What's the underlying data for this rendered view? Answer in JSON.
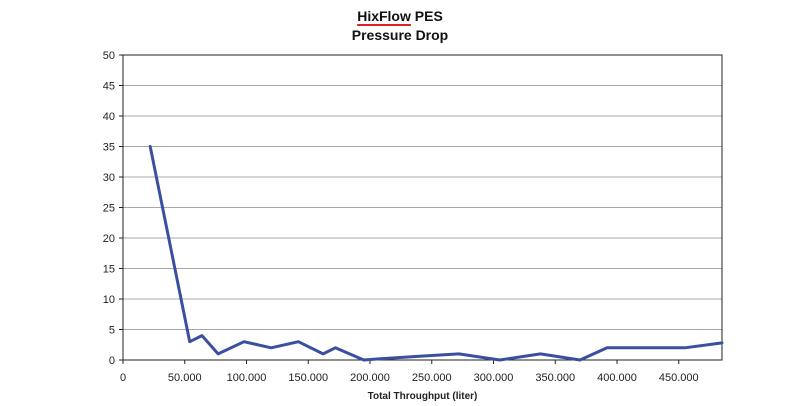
{
  "chart_data": {
    "type": "line",
    "title_brand": "HixFlow",
    "title_suffix": "PES",
    "subtitle": "Pressure  Drop",
    "xlabel": "Total  Throughput  (liter)",
    "ylabel": "",
    "xlim": [
      0,
      485000
    ],
    "ylim": [
      0,
      50
    ],
    "x_ticks": [
      0,
      50000,
      100000,
      150000,
      200000,
      250000,
      300000,
      350000,
      400000,
      450000
    ],
    "x_tick_labels": [
      "0",
      "50.000",
      "100.000",
      "150.000",
      "200.000",
      "250.000",
      "300.000",
      "350.000",
      "400.000",
      "450.000"
    ],
    "y_ticks": [
      0,
      5,
      10,
      15,
      20,
      25,
      30,
      35,
      40,
      45,
      50
    ],
    "y_tick_labels": [
      "0",
      "5",
      "10",
      "15",
      "20",
      "25",
      "30",
      "35",
      "40",
      "45",
      "50"
    ],
    "grid": true,
    "line_color": "#3a4fa0",
    "grid_color": "#a8a8a8",
    "series": [
      {
        "x": [
          22000,
          54000,
          64000,
          77000,
          98000,
          120000,
          142000,
          162000,
          172000,
          195000,
          215000,
          240000,
          272000,
          305000,
          338000,
          370000,
          392000,
          425000,
          455000,
          485000
        ],
        "y": [
          35,
          3,
          4,
          1,
          3,
          2,
          3,
          1,
          2,
          0,
          0.3,
          0.6,
          1,
          0,
          1,
          0,
          2,
          2,
          2,
          2.8
        ]
      }
    ]
  }
}
